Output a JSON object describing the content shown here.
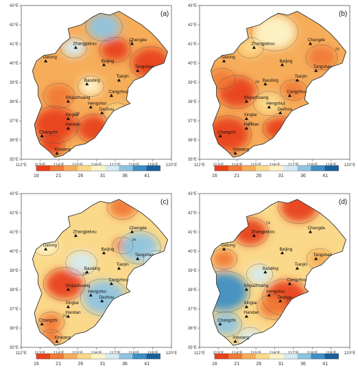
{
  "panels": [
    {
      "label": "(a)",
      "variant": 0
    },
    {
      "label": "(b)",
      "variant": 1
    },
    {
      "label": "(c)",
      "variant": 2
    },
    {
      "label": "(d)",
      "variant": 3
    }
  ],
  "lon_labels": [
    "112°E",
    "113°E",
    "114°E",
    "115°E",
    "116°E",
    "117°E",
    "118°E",
    "119°E",
    "120°E"
  ],
  "lat_labels": [
    "43°E",
    "42°E",
    "41°E",
    "40°E",
    "39°E",
    "38°E",
    "37°E",
    "36°E",
    "35°E"
  ],
  "lon_range": [
    112,
    120
  ],
  "lat_range": [
    35,
    43
  ],
  "colorbar": {
    "ticks": [
      "16",
      "21",
      "26",
      "31",
      "36",
      "41"
    ],
    "values": [
      16,
      21,
      26,
      31,
      36,
      41
    ],
    "range": [
      16,
      44
    ],
    "colors": [
      "#e8401c",
      "#f07a36",
      "#f6ad5a",
      "#fbd98a",
      "#fdf4c8",
      "#d6ebf1",
      "#8fc4e0",
      "#3e8fc4",
      "#1c5e9c"
    ]
  },
  "cities": [
    {
      "name": "Zhangjiakou",
      "lon": 114.9,
      "lat": 40.8
    },
    {
      "name": "Chengde",
      "lon": 117.9,
      "lat": 41.0
    },
    {
      "name": "Datong",
      "lon": 113.3,
      "lat": 40.1
    },
    {
      "name": "Beijing",
      "lon": 116.4,
      "lat": 39.9
    },
    {
      "name": "Tangshan",
      "lon": 118.2,
      "lat": 39.6
    },
    {
      "name": "Baoding",
      "lon": 115.5,
      "lat": 38.9
    },
    {
      "name": "Tianjin",
      "lon": 117.2,
      "lat": 39.1
    },
    {
      "name": "Cangzhou",
      "lon": 116.8,
      "lat": 38.3
    },
    {
      "name": "Shijiazhuang",
      "lon": 114.5,
      "lat": 38.0
    },
    {
      "name": "Hengshui",
      "lon": 115.7,
      "lat": 37.7
    },
    {
      "name": "Dezhou",
      "lon": 116.3,
      "lat": 37.4
    },
    {
      "name": "Xingtai",
      "lon": 114.5,
      "lat": 37.1
    },
    {
      "name": "Handan",
      "lon": 114.5,
      "lat": 36.6
    },
    {
      "name": "Changzhi",
      "lon": 113.1,
      "lat": 36.2
    },
    {
      "name": "Xinxiang",
      "lon": 113.9,
      "lat": 35.3
    }
  ],
  "contour_labels": [
    "19",
    "24",
    "29",
    "34"
  ]
}
